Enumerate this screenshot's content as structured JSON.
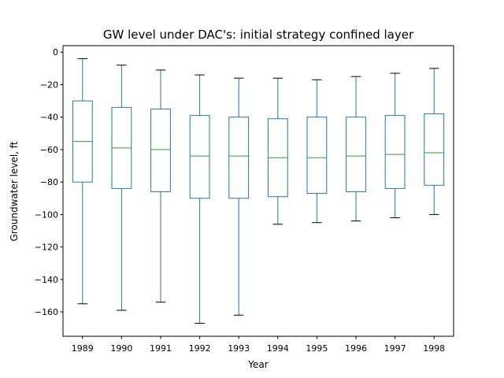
{
  "chart_data": {
    "type": "box",
    "title": "GW level under DAC's: initial strategy confined layer",
    "xlabel": "Year",
    "ylabel": "Groundwater level, ft",
    "ylim": [
      -175,
      4
    ],
    "yticks": [
      0,
      -20,
      -40,
      -60,
      -80,
      -100,
      -120,
      -140,
      -160
    ],
    "ytick_labels": [
      "0",
      "−20",
      "−40",
      "−60",
      "−80",
      "−100",
      "−120",
      "−140",
      "−160"
    ],
    "grid": false,
    "categories": [
      "1989",
      "1990",
      "1991",
      "1992",
      "1993",
      "1994",
      "1995",
      "1996",
      "1997",
      "1998"
    ],
    "boxes": [
      {
        "whisker_high": -4,
        "q3": -30,
        "median": -55,
        "q1": -80,
        "whisker_low": -155
      },
      {
        "whisker_high": -8,
        "q3": -34,
        "median": -59,
        "q1": -84,
        "whisker_low": -159
      },
      {
        "whisker_high": -11,
        "q3": -35,
        "median": -60,
        "q1": -86,
        "whisker_low": -154
      },
      {
        "whisker_high": -14,
        "q3": -39,
        "median": -64,
        "q1": -90,
        "whisker_low": -167
      },
      {
        "whisker_high": -16,
        "q3": -40,
        "median": -64,
        "q1": -90,
        "whisker_low": -162
      },
      {
        "whisker_high": -16,
        "q3": -41,
        "median": -65,
        "q1": -89,
        "whisker_low": -106
      },
      {
        "whisker_high": -17,
        "q3": -40,
        "median": -65,
        "q1": -87,
        "whisker_low": -105
      },
      {
        "whisker_high": -15,
        "q3": -40,
        "median": -64,
        "q1": -86,
        "whisker_low": -104
      },
      {
        "whisker_high": -13,
        "q3": -39,
        "median": -63,
        "q1": -84,
        "whisker_low": -102
      },
      {
        "whisker_high": -10,
        "q3": -38,
        "median": -62,
        "q1": -82,
        "whisker_low": -100
      }
    ],
    "colors": {
      "box": "#1f77b4",
      "median": "#2ca02c",
      "whisker_cap": "#000000",
      "axes": "#000000"
    }
  }
}
